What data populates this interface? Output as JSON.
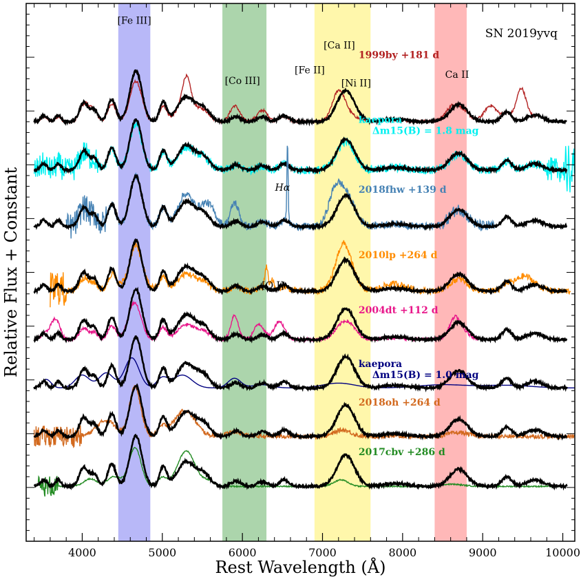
{
  "chart_data": {
    "type": "line",
    "title": "SN 2019yvq",
    "xlabel": "Rest Wavelength (Å)",
    "ylabel": "Relative Flux + Constant",
    "xlim": [
      3300,
      10150
    ],
    "ylim": [
      0,
      100
    ],
    "x_ticks": [
      4000,
      5000,
      6000,
      7000,
      8000,
      9000,
      10000
    ],
    "x_tick_labels": [
      "4000",
      "5000",
      "6000",
      "7000",
      "8000",
      "9000",
      "10000"
    ],
    "bands": [
      {
        "name": "[Fe III]",
        "x0": 4450,
        "x1": 4850,
        "color": "#5555ee"
      },
      {
        "name": "[Co III]",
        "x0": 5750,
        "x1": 6300,
        "color": "#3a9a3a"
      },
      {
        "name": "[Fe II] / [Ca II] / [Ni II]",
        "x0": 6900,
        "x1": 7600,
        "color": "#ffee44"
      },
      {
        "name": "Ca II",
        "x0": 8400,
        "x1": 8800,
        "color": "#ff5555"
      }
    ],
    "feature_labels": [
      {
        "text": "[Fe III]",
        "x": 4650,
        "y": 96.2
      },
      {
        "text": "[Co III]",
        "x": 6000,
        "y": 85.0
      },
      {
        "text": "[Ca II]",
        "x": 7210,
        "y": 91.6
      },
      {
        "text": "[Fe II]",
        "x": 6840,
        "y": 87.0
      },
      {
        "text": "[Ni II]",
        "x": 7420,
        "y": 84.6
      },
      {
        "text": "Ca II",
        "x": 8680,
        "y": 86.2
      },
      {
        "text": "Hα",
        "x": 6500,
        "y": 65.2
      },
      {
        "text": "[O I]",
        "x": 6380,
        "y": 47.0
      }
    ],
    "series": [
      {
        "name": "1999by +181 d",
        "label_lines": [
          "1999by +181 d"
        ],
        "color": "#b22222",
        "offset": 78,
        "range": [
          3400,
          9650
        ],
        "label_x": 7450,
        "label_y": 89.8,
        "template": "1999by"
      },
      {
        "name": "kaepora Δm15(B) = 1.8 mag",
        "label_lines": [
          "kaepora",
          "Δm15(B) = 1.8 mag"
        ],
        "color": "#00f0f0",
        "offset": 69,
        "range": [
          3400,
          10150
        ],
        "label_x": 7450,
        "label_y": 77.8,
        "template": "noisy"
      },
      {
        "name": "2018fhw +139 d",
        "label_lines": [
          "2018fhw  +139 d"
        ],
        "color": "#4682b4",
        "offset": 58.5,
        "range": [
          3800,
          9150
        ],
        "label_x": 7450,
        "label_y": 64.8,
        "template": "fhw"
      },
      {
        "name": "2010lp +264 d",
        "label_lines": [
          "2010lp  +264 d"
        ],
        "color": "#ff8c00",
        "offset": 46.5,
        "range": [
          3600,
          10100
        ],
        "label_x": 7450,
        "label_y": 52.6,
        "template": "lp"
      },
      {
        "name": "2004dt +112 d",
        "label_lines": [
          "2004dt +112 d"
        ],
        "color": "#e8178a",
        "offset": 37.5,
        "range": [
          3400,
          8950
        ],
        "label_x": 7450,
        "label_y": 42.4,
        "template": "dt"
      },
      {
        "name": "kaepora Δm15(B) = 1.0 mag",
        "label_lines": [
          "kaepora",
          "Δm15(B) = 1.0 mag"
        ],
        "color": "#000080",
        "offset": 28.5,
        "range": [
          3400,
          10150
        ],
        "label_x": 7450,
        "label_y": 32.4,
        "template": "smooth"
      },
      {
        "name": "2018oh +264 d",
        "label_lines": [
          "2018oh  +264 d"
        ],
        "color": "#d2691e",
        "offset": 19.5,
        "range": [
          3400,
          10150
        ],
        "label_x": 7450,
        "label_y": 25.2,
        "template": "oh"
      },
      {
        "name": "2017cbv +286 d",
        "label_lines": [
          "2017cbv  +286 d"
        ],
        "color": "#228b22",
        "offset": 10.2,
        "range": [
          3450,
          9950
        ],
        "label_x": 7450,
        "label_y": 16.0,
        "template": "cbv"
      }
    ],
    "sn2019yvq": {
      "color": "#000000",
      "offsets": [
        78,
        69,
        58.5,
        46.5,
        37.5,
        28.5,
        19.5,
        10.2
      ],
      "range": [
        3400,
        10050
      ]
    }
  }
}
